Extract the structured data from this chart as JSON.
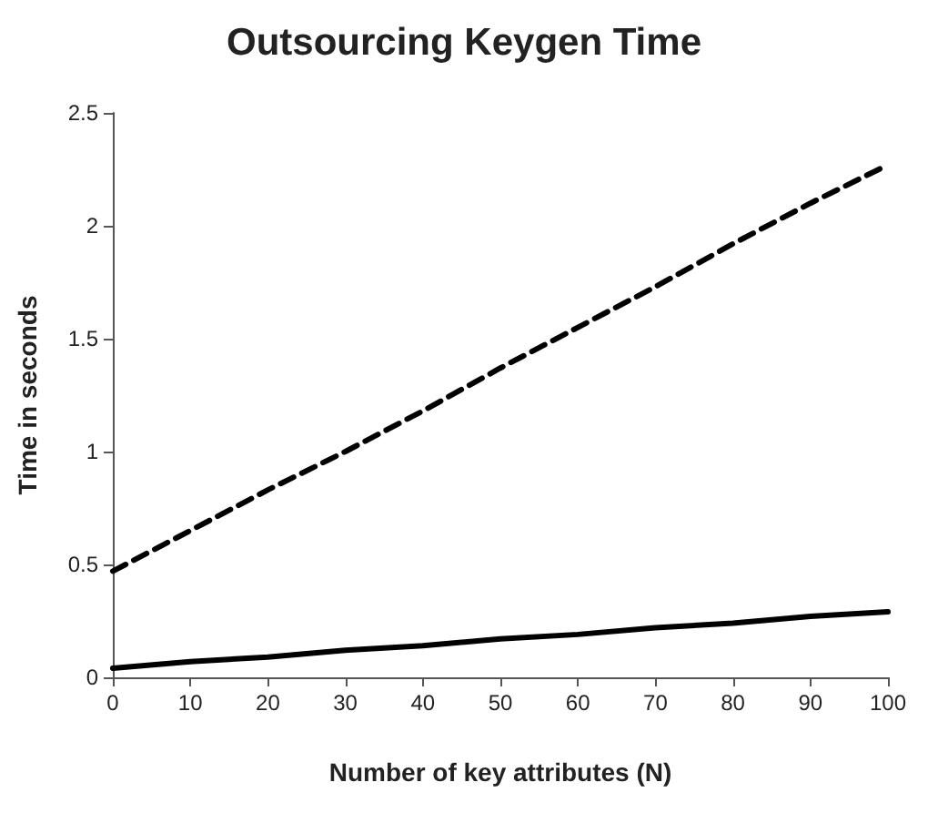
{
  "chart_data": {
    "type": "line",
    "title": "Outsourcing Keygen Time",
    "xlabel": "Number of key attributes (N)",
    "ylabel": "Time in seconds",
    "x": [
      0,
      10,
      20,
      30,
      40,
      50,
      60,
      70,
      80,
      90,
      100
    ],
    "series": [
      {
        "color": "#000000",
        "line_style": "dashed",
        "values": [
          0.47,
          0.65,
          0.83,
          1.0,
          1.18,
          1.37,
          1.55,
          1.73,
          1.92,
          2.1,
          2.27
        ]
      },
      {
        "color": "#000000",
        "line_style": "solid",
        "values": [
          0.04,
          0.07,
          0.09,
          0.12,
          0.14,
          0.17,
          0.19,
          0.22,
          0.24,
          0.27,
          0.29
        ]
      }
    ],
    "xlim": [
      0,
      100
    ],
    "xticks": [
      0,
      10,
      20,
      30,
      40,
      50,
      60,
      70,
      80,
      90,
      100
    ],
    "ylim": [
      0,
      2.5
    ],
    "yticks": [
      0,
      0.5,
      1,
      1.5,
      2,
      2.5
    ],
    "grid": false,
    "marker": "none"
  }
}
